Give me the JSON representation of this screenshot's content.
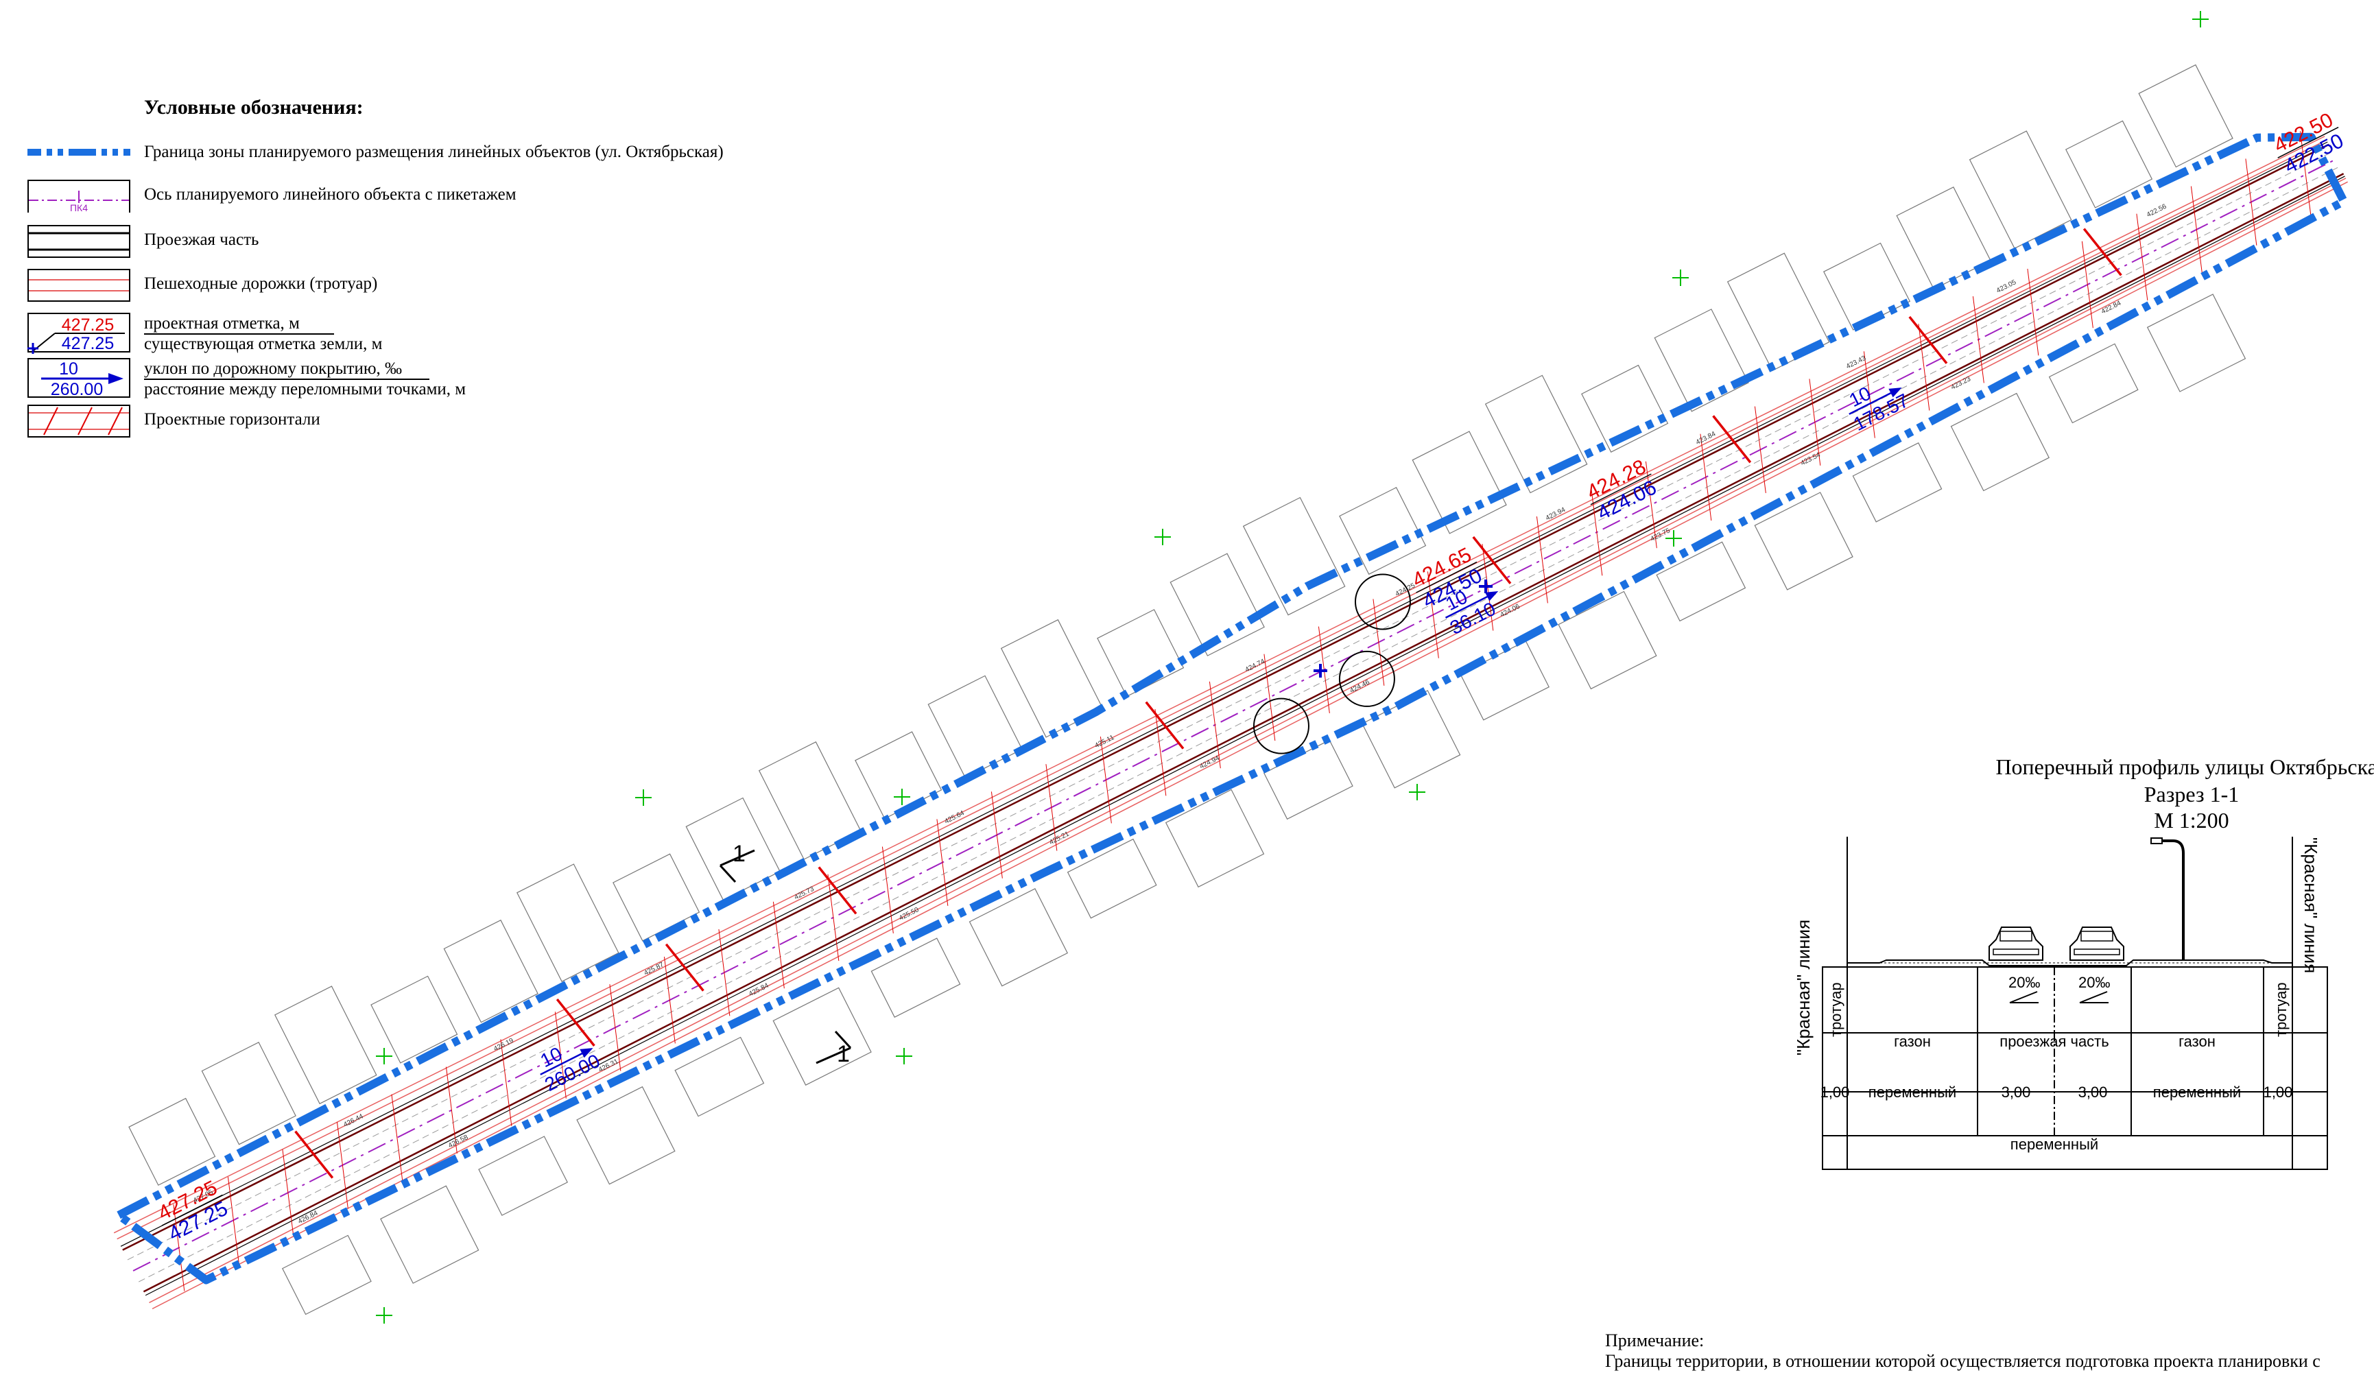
{
  "legend": {
    "title": "Условные обозначения:",
    "items": [
      {
        "text": "Граница зоны планируемого размещения линейных объектов (ул. Октябрьская)"
      },
      {
        "text": "Ось планируемого линейного объекта с пикетажем",
        "symbol_label": "ПК4"
      },
      {
        "text": "Проезжая часть"
      },
      {
        "text": "Пешеходные дорожки (тротуар)"
      },
      {
        "text": "проектная отметка, м",
        "text2": "существующая отметка земли, м",
        "value_top": "427.25",
        "value_bottom": "427.25"
      },
      {
        "text": "уклон по дорожному покрытию, ‰",
        "text2": "расстояние между переломными точками, м",
        "value_top": "10",
        "value_bottom": "260.00"
      },
      {
        "text": "Проектные горизонтали"
      }
    ]
  },
  "plan": {
    "elevation_labels": [
      {
        "design": "427.25",
        "existing": "427.25"
      },
      {
        "design": "424.65",
        "existing": "424.50"
      },
      {
        "design": "424.28",
        "existing": "424.06"
      },
      {
        "design": "422.50",
        "existing": "422.50"
      }
    ],
    "slope_labels": [
      {
        "slope": "10",
        "distance": "260.00"
      },
      {
        "slope": "10",
        "distance": "36.10"
      },
      {
        "slope": "10",
        "distance": "178.57"
      }
    ],
    "section_marker": "1",
    "spot_heights": [
      "427.05",
      "426.84",
      "426.44",
      "426.58",
      "426.19",
      "426.31",
      "425.87",
      "425.84",
      "425.73",
      "425.50",
      "425.64",
      "425.21",
      "425.11",
      "424.94",
      "424.74",
      "424.46",
      "424.25",
      "424.06",
      "423.94",
      "423.75",
      "423.84",
      "423.54",
      "423.43",
      "423.23",
      "423.05",
      "422.84",
      "422.56"
    ]
  },
  "profile": {
    "title_lines": [
      "Поперечный профиль улицы Октябрьская",
      "Разрез 1-1",
      "М 1:200"
    ],
    "red_line_label": "\"Красная\" линия",
    "slope_left": "20‰",
    "slope_right": "20‰",
    "row1": [
      "тротуар",
      "газон",
      "проезжая часть",
      "газон",
      "тротуар"
    ],
    "row2": [
      "1,00",
      "переменный",
      "3,00",
      "3,00",
      "переменный",
      "1,00"
    ],
    "row3": "переменный"
  },
  "note": {
    "heading": "Примечание:",
    "text": "Границы территории, в отношении которой осуществляется подготовка проекта планировки с"
  },
  "colors": {
    "boundary": "#1a6fe0",
    "design_mark": "#e00000",
    "existing_mark": "#0000cc",
    "axis": "#a020c0",
    "sidewalk": "#e86060",
    "survey": "#00bb00"
  }
}
